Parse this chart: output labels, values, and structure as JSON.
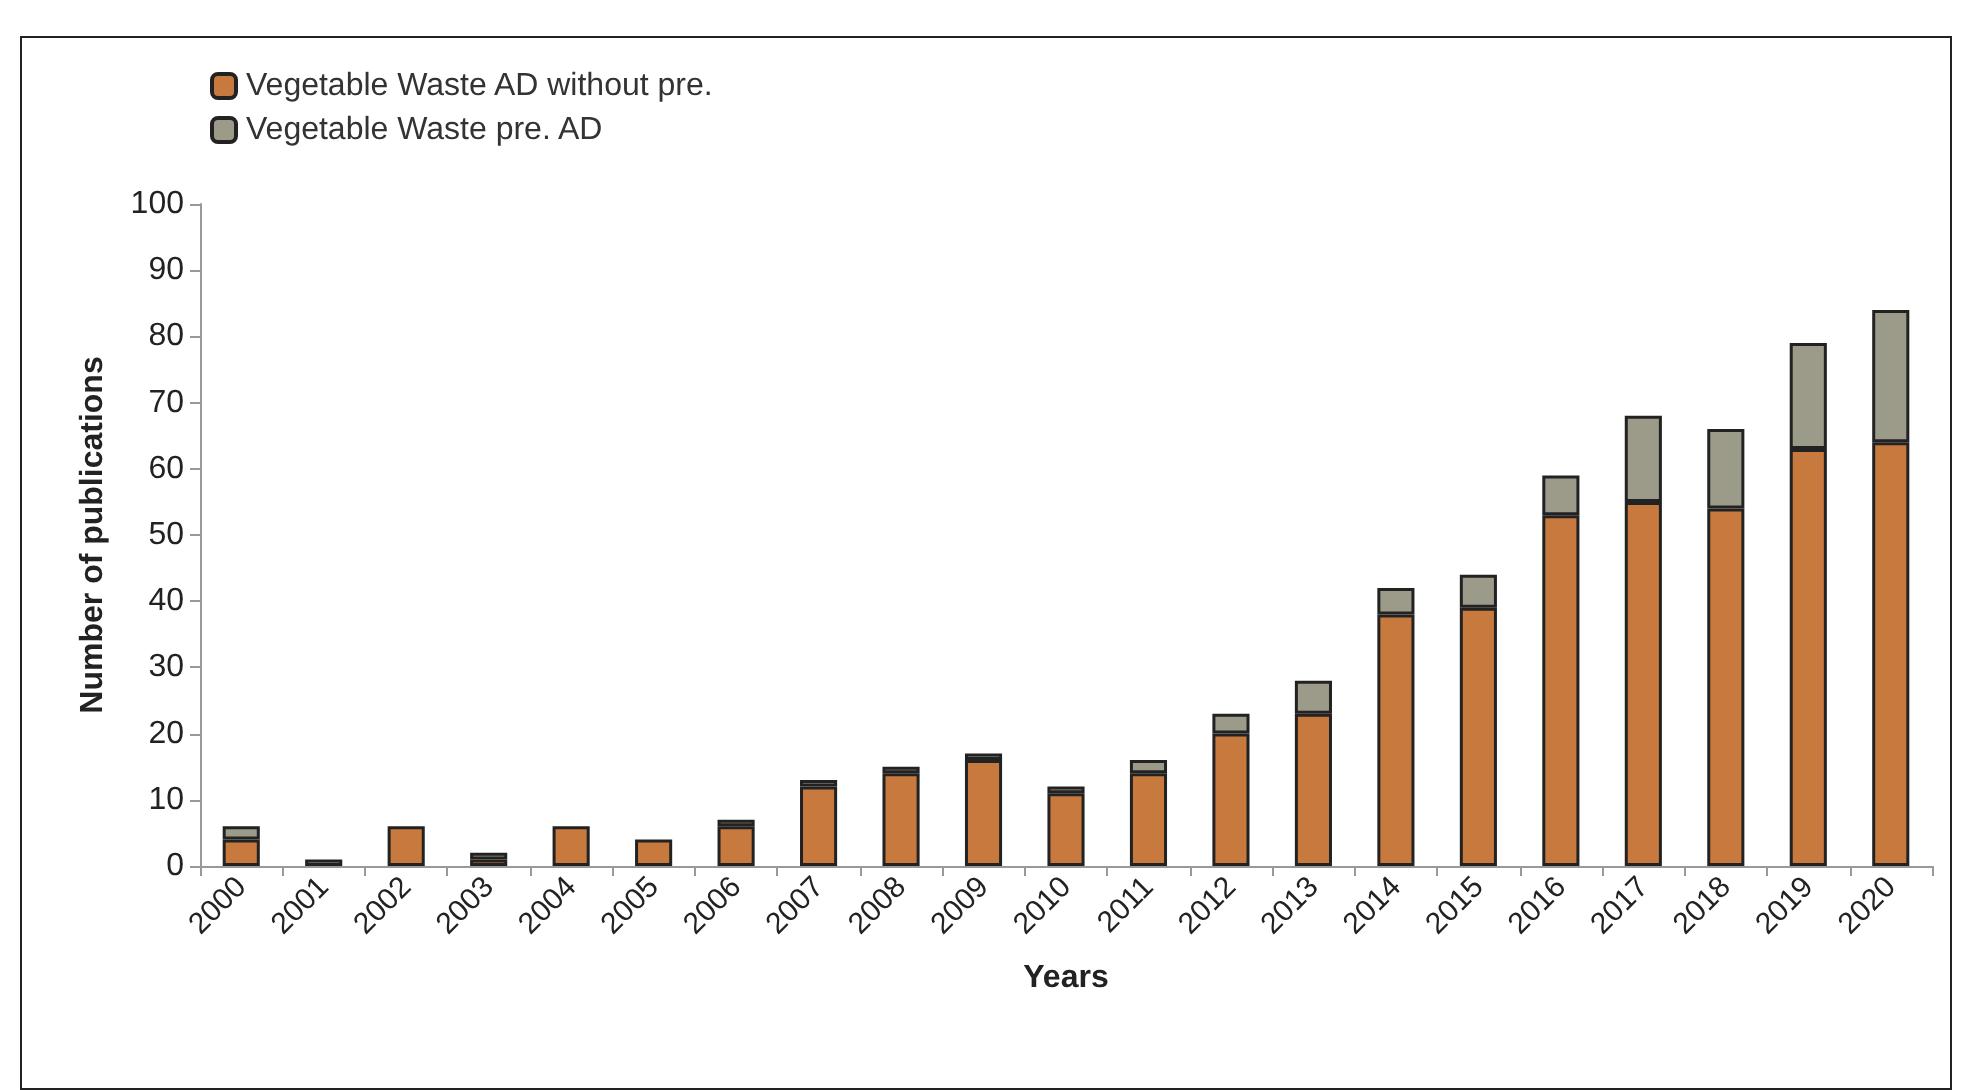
{
  "chart_data": {
    "type": "bar",
    "stacked": true,
    "xlabel": "Years",
    "ylabel": "Number of publications",
    "categories": [
      "2000",
      "2001",
      "2002",
      "2003",
      "2004",
      "2005",
      "2006",
      "2007",
      "2008",
      "2009",
      "2010",
      "2011",
      "2012",
      "2013",
      "2014",
      "2015",
      "2016",
      "2017",
      "2018",
      "2019",
      "2020"
    ],
    "series": [
      {
        "name": "Vegetable Waste AD without pre.",
        "color": "#c87a3e",
        "values": [
          4,
          0,
          6,
          1,
          6,
          4,
          6,
          12,
          14,
          16,
          11,
          14,
          20,
          23,
          38,
          39,
          53,
          55,
          54,
          63,
          64
        ]
      },
      {
        "name": "Vegetable Waste pre. AD",
        "color": "#9c9a88",
        "values": [
          2,
          1,
          0,
          1,
          0,
          0,
          1,
          1,
          1,
          1,
          1,
          2,
          3,
          5,
          4,
          5,
          6,
          13,
          12,
          16,
          20
        ]
      }
    ],
    "ylim": [
      0,
      100
    ],
    "yticks": [
      0,
      10,
      20,
      30,
      40,
      50,
      60,
      70,
      80,
      90,
      100
    ],
    "grid": false,
    "legend": "top left"
  }
}
